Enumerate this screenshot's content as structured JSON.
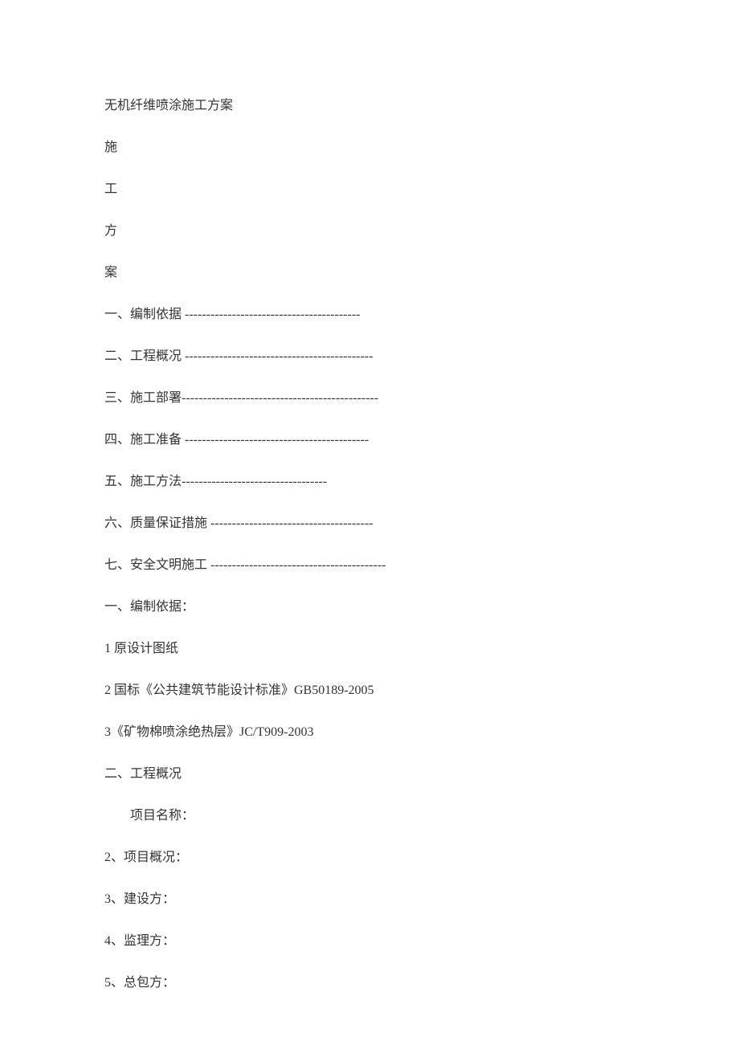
{
  "document": {
    "title": "无机纤维喷涂施工方案",
    "vertical_title": [
      "施",
      "工",
      "方",
      "案"
    ],
    "toc": [
      {
        "label": "一、编制依据",
        "dashes": " -----------------------------------------"
      },
      {
        "label": "二、工程概况",
        "dashes": " --------------------------------------------"
      },
      {
        "label": "三、施工部署",
        "dashes": "----------------------------------------------"
      },
      {
        "label": "四、施工准备",
        "dashes": " -------------------------------------------"
      },
      {
        "label": "五、施工方法",
        "dashes": "----------------------------------"
      },
      {
        "label": "六、质量保证措施",
        "dashes": " --------------------------------------"
      },
      {
        "label": "七、安全文明施工",
        "dashes": " -----------------------------------------"
      }
    ],
    "section1": {
      "heading": "一、编制依据：",
      "items": [
        "1 原设计图纸",
        "2 国标《公共建筑节能设计标准》GB50189-2005",
        "3《矿物棉喷涂绝热层》JC/T909-2003"
      ]
    },
    "section2": {
      "heading": "二、工程概况",
      "items": [
        {
          "text": "项目名称：",
          "indented": true
        },
        {
          "text": "2、项目概况：",
          "indented": false
        },
        {
          "text": "3、建设方：",
          "indented": false
        },
        {
          "text": "4、监理方：",
          "indented": false
        },
        {
          "text": "5、总包方：",
          "indented": false
        }
      ]
    }
  }
}
